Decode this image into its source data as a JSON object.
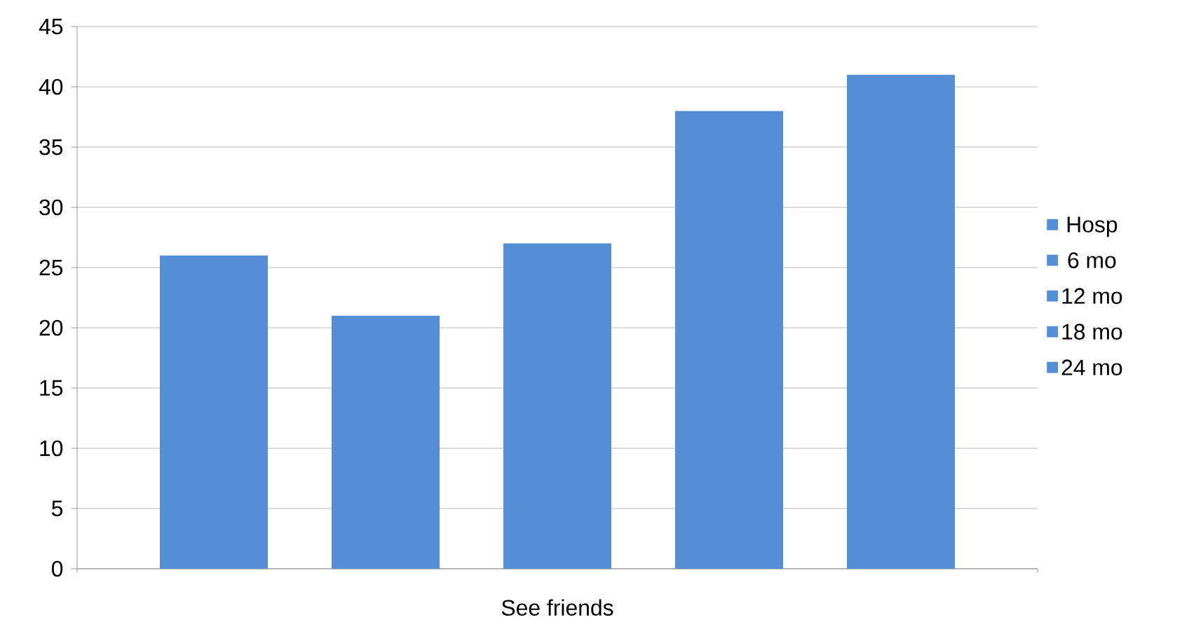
{
  "chart_data": {
    "type": "bar",
    "categories": [
      "See friends"
    ],
    "series": [
      {
        "name": "Hosp",
        "color": "#558ed5",
        "values": [
          26
        ]
      },
      {
        "name": "6 mo",
        "color": "#558ed5",
        "values": [
          21
        ]
      },
      {
        "name": "12 mo",
        "color": "#558ed5",
        "values": [
          27
        ]
      },
      {
        "name": "18 mo",
        "color": "#558ed5",
        "values": [
          38
        ]
      },
      {
        "name": "24 mo",
        "color": "#558ed5",
        "values": [
          41
        ]
      }
    ],
    "ylim": [
      0,
      45
    ],
    "yticks": [
      0,
      5,
      10,
      15,
      20,
      25,
      30,
      35,
      40,
      45
    ],
    "grid": "y",
    "legend": "right"
  }
}
